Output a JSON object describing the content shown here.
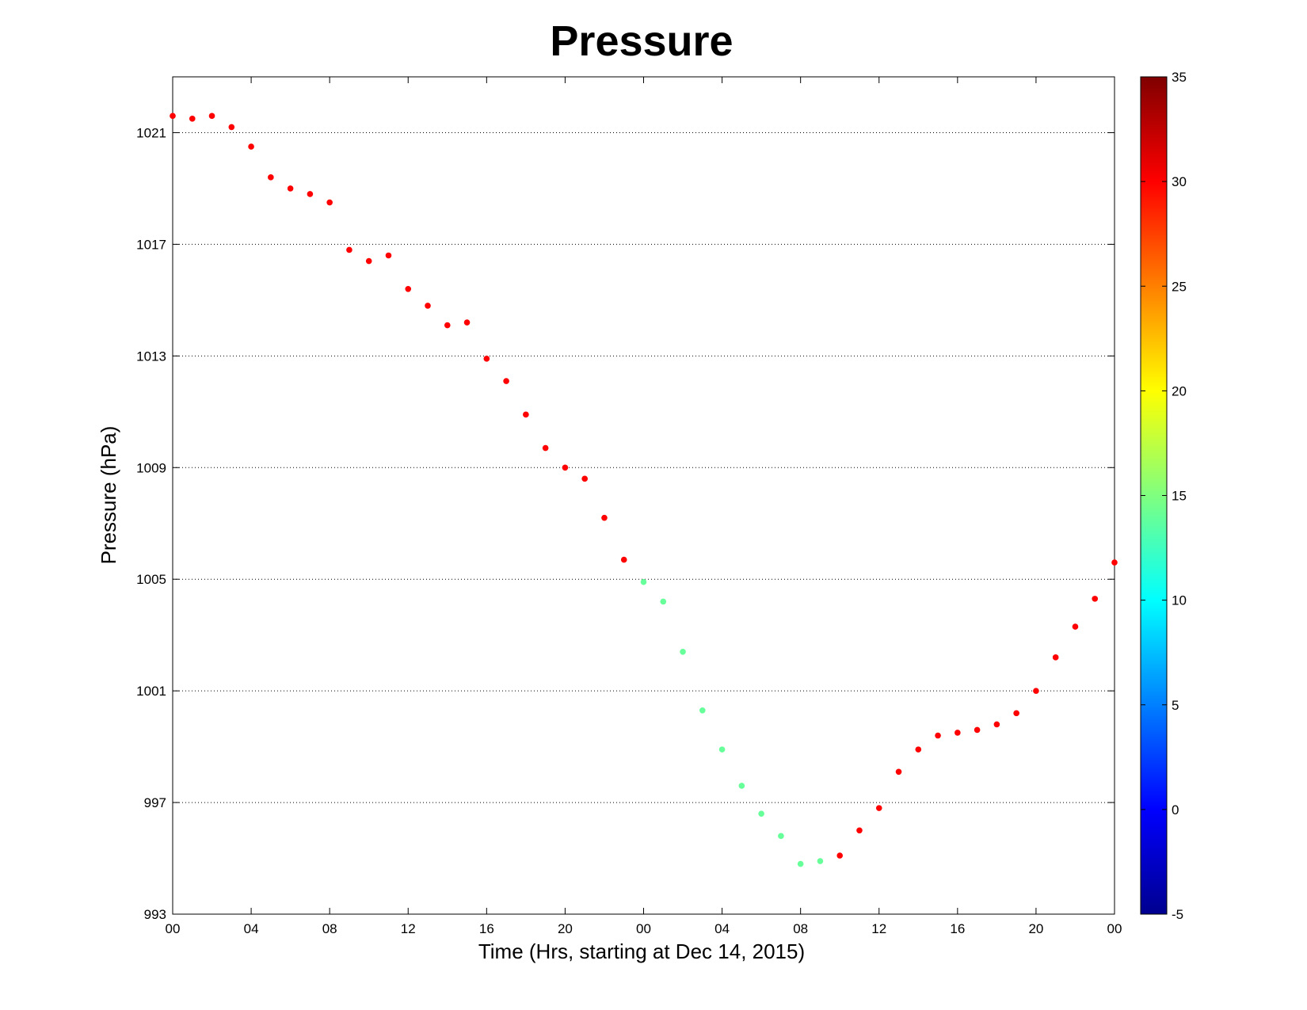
{
  "chart_data": {
    "type": "scatter",
    "title": "Pressure",
    "xlabel": "Time (Hrs, starting at Dec 14, 2015)",
    "ylabel": "Pressure (hPa)",
    "x_unit": "hours",
    "xlim": [
      0,
      48
    ],
    "ylim": [
      993,
      1023
    ],
    "yticks": [
      993,
      997,
      1001,
      1005,
      1009,
      1013,
      1017,
      1021
    ],
    "xticks": [
      {
        "x": 0,
        "label": "00"
      },
      {
        "x": 4,
        "label": "04"
      },
      {
        "x": 8,
        "label": "08"
      },
      {
        "x": 12,
        "label": "12"
      },
      {
        "x": 16,
        "label": "16"
      },
      {
        "x": 20,
        "label": "20"
      },
      {
        "x": 24,
        "label": "00"
      },
      {
        "x": 28,
        "label": "04"
      },
      {
        "x": 32,
        "label": "08"
      },
      {
        "x": 36,
        "label": "12"
      },
      {
        "x": 40,
        "label": "16"
      },
      {
        "x": 44,
        "label": "20"
      },
      {
        "x": 48,
        "label": "00"
      }
    ],
    "grid": "horizontal-dotted",
    "x": [
      0,
      1,
      2,
      3,
      4,
      5,
      6,
      7,
      8,
      9,
      10,
      11,
      12,
      13,
      14,
      15,
      16,
      17,
      18,
      19,
      20,
      21,
      22,
      23,
      24,
      25,
      26,
      27,
      28,
      29,
      30,
      31,
      32,
      33,
      34,
      35,
      36,
      37,
      38,
      39,
      40,
      41,
      42,
      43,
      44,
      45,
      46,
      47,
      48
    ],
    "y": [
      1021.6,
      1021.5,
      1021.6,
      1021.2,
      1020.5,
      1019.4,
      1019.0,
      1018.8,
      1018.5,
      1016.8,
      1016.4,
      1016.6,
      1015.4,
      1014.8,
      1014.1,
      1014.2,
      1012.9,
      1012.1,
      1010.9,
      1009.7,
      1009.0,
      1008.6,
      1007.2,
      1005.7,
      1004.9,
      1004.2,
      1002.4,
      1000.3,
      998.9,
      997.6,
      996.6,
      995.8,
      994.8,
      994.9,
      995.1,
      996.0,
      996.8,
      998.1,
      998.9,
      999.4,
      999.5,
      999.6,
      999.8,
      1000.2,
      1001.0,
      1002.2,
      1003.3,
      1004.3,
      1005.6
    ],
    "color_values": [
      30,
      30,
      30,
      30,
      30,
      30,
      30,
      30,
      30,
      30,
      30,
      30,
      30,
      30,
      30,
      30,
      30,
      30,
      30,
      30,
      30,
      30,
      30,
      30,
      14,
      14,
      14,
      14,
      14,
      14,
      14,
      14,
      14,
      14,
      30,
      30,
      30,
      30,
      30,
      30,
      30,
      30,
      30,
      30,
      30,
      30,
      30,
      30,
      30
    ],
    "colorbar": {
      "colormap": "jet",
      "range": [
        -5,
        35
      ],
      "ticks": [
        -5,
        0,
        5,
        10,
        15,
        20,
        25,
        30,
        35
      ]
    }
  }
}
